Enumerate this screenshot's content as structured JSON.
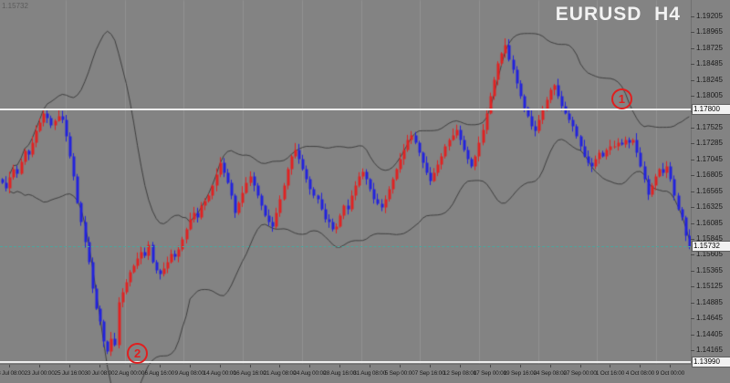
{
  "header": {
    "watermark": "EURUSD  H4",
    "corner_value": "1.15732"
  },
  "chart_data": {
    "type": "candlestick",
    "symbol": "EURUSD",
    "timeframe": "H4",
    "title": "EURUSD H4",
    "ylim": [
      1.1396,
      1.1945
    ],
    "y_tick_step": 0.0024,
    "y_ticks": [
      "1.19205",
      "1.18965",
      "1.18725",
      "1.18485",
      "1.18245",
      "1.18005",
      "1.17765",
      "1.17525",
      "1.17285",
      "1.17045",
      "1.16805",
      "1.16565",
      "1.16325",
      "1.16085",
      "1.15845",
      "1.15605",
      "1.15365",
      "1.15125",
      "1.14885",
      "1.14645",
      "1.14405",
      "1.14165"
    ],
    "x_labels": [
      "18 Jul 08:00",
      "23 Jul 00:00",
      "25 Jul 16:00",
      "30 Jul 08:00",
      "2 Aug 00:00",
      "6 Aug 16:00",
      "9 Aug 08:00",
      "14 Aug 00:00",
      "16 Aug 16:00",
      "21 Aug 08:00",
      "24 Aug 00:00",
      "28 Aug 16:00",
      "31 Aug 08:00",
      "5 Sep 00:00",
      "7 Sep 16:00",
      "12 Sep 08:00",
      "17 Sep 00:00",
      "19 Sep 16:00",
      "24 Sep 08:00",
      "27 Sep 00:00",
      "1 Oct 16:00",
      "4 Oct 08:00",
      "9 Oct 00:00"
    ],
    "bars_per_label": 8,
    "first_label_bar": 2,
    "indicator": {
      "name": "Bollinger Bands",
      "period": 20,
      "deviations": 2
    },
    "grid": "vertical-period-separators",
    "closes": [
      1.167,
      1.1662,
      1.1678,
      1.169,
      1.1684,
      1.1702,
      1.1718,
      1.1712,
      1.173,
      1.1748,
      1.176,
      1.1775,
      1.1768,
      1.1756,
      1.1764,
      1.177,
      1.1765,
      1.174,
      1.171,
      1.168,
      1.164,
      1.161,
      1.158,
      1.155,
      1.151,
      1.148,
      1.146,
      1.143,
      1.1415,
      1.1435,
      1.1425,
      1.149,
      1.1505,
      1.152,
      1.1535,
      1.1545,
      1.1555,
      1.1565,
      1.156,
      1.1576,
      1.155,
      1.1538,
      1.1532,
      1.154,
      1.155,
      1.1562,
      1.1558,
      1.157,
      1.1585,
      1.16,
      1.1615,
      1.1625,
      1.1618,
      1.1635,
      1.1642,
      1.165,
      1.1665,
      1.1682,
      1.17,
      1.1685,
      1.167,
      1.165,
      1.1625,
      1.164,
      1.1655,
      1.167,
      1.168,
      1.1665,
      1.165,
      1.1635,
      1.162,
      1.161,
      1.1604,
      1.1625,
      1.1645,
      1.1665,
      1.169,
      1.171,
      1.172,
      1.1705,
      1.169,
      1.1675,
      1.166,
      1.165,
      1.1645,
      1.163,
      1.1615,
      1.161,
      1.16,
      1.1604,
      1.162,
      1.1635,
      1.163,
      1.165,
      1.1665,
      1.168,
      1.1687,
      1.1675,
      1.166,
      1.1645,
      1.1638,
      1.1632,
      1.1645,
      1.166,
      1.1675,
      1.169,
      1.1705,
      1.172,
      1.1735,
      1.1742,
      1.173,
      1.1715,
      1.17,
      1.1685,
      1.1673,
      1.1685,
      1.1698,
      1.171,
      1.1725,
      1.1735,
      1.1742,
      1.1749,
      1.1735,
      1.172,
      1.1705,
      1.1694,
      1.171,
      1.173,
      1.175,
      1.1775,
      1.18,
      1.1825,
      1.185,
      1.1865,
      1.1878,
      1.1855,
      1.184,
      1.182,
      1.18,
      1.1783,
      1.177,
      1.1755,
      1.1748,
      1.1765,
      1.178,
      1.1795,
      1.181,
      1.1817,
      1.18,
      1.1785,
      1.1775,
      1.1765,
      1.1755,
      1.174,
      1.1725,
      1.171,
      1.17,
      1.1694,
      1.1705,
      1.1715,
      1.171,
      1.172,
      1.1725,
      1.1725,
      1.173,
      1.1728,
      1.1735,
      1.173,
      1.1735,
      1.1715,
      1.1695,
      1.1675,
      1.1652,
      1.1665,
      1.168,
      1.169,
      1.1685,
      1.1694,
      1.1675,
      1.165,
      1.163,
      1.1618,
      1.159,
      1.15732
    ],
    "objects": {
      "horizontal_lines": [
        {
          "price": 1.178,
          "label": "1.17800"
        },
        {
          "price": 1.1399,
          "label": "1.13990"
        }
      ],
      "bid_line": {
        "price": 1.15732,
        "label": "1.15732"
      },
      "annotations": [
        {
          "text": "1",
          "bar": 165,
          "price": 1.1796
        },
        {
          "text": "2",
          "bar": 36,
          "price": 1.1413
        }
      ]
    },
    "colors": {
      "background": "#838383",
      "bull": "#e02222",
      "bear": "#2222dd",
      "band": "#3f3f3f",
      "separator": "#929292",
      "line": "#ededed",
      "bid": "#4fa39b",
      "annotation": "#e01f1f",
      "axis_text": "#1b1b1b"
    }
  }
}
